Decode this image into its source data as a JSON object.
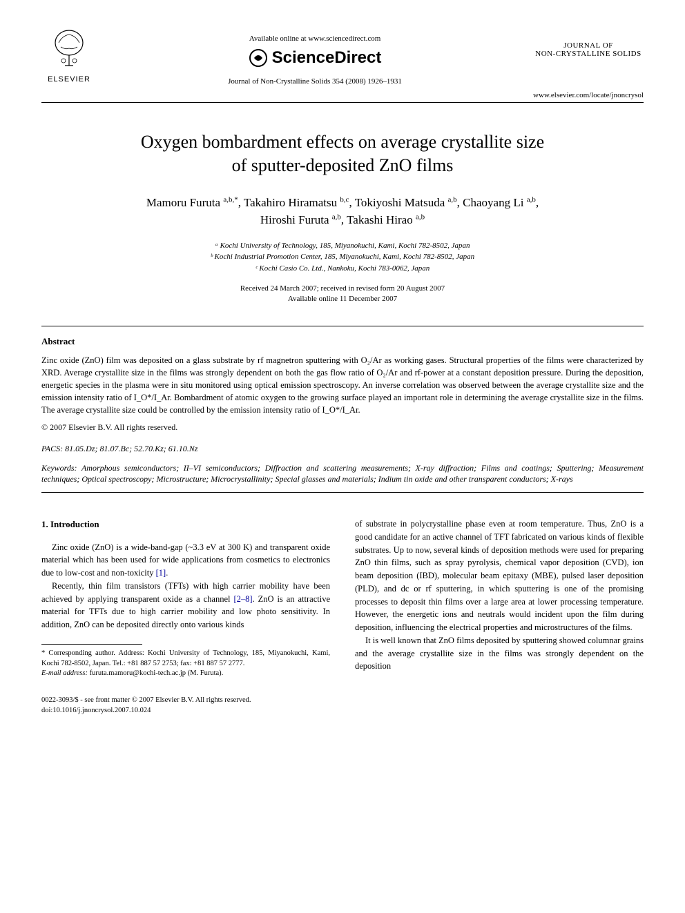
{
  "header": {
    "publisher_name": "ELSEVIER",
    "available_online": "Available online at www.sciencedirect.com",
    "sciencedirect_label": "ScienceDirect",
    "journal_citation": "Journal of Non-Crystalline Solids 354 (2008) 1926–1931",
    "journal_name_line1": "JOURNAL OF",
    "journal_name_line2": "NON-CRYSTALLINE SOLIDS",
    "journal_url": "www.elsevier.com/locate/jnoncrysol"
  },
  "article": {
    "title_line1": "Oxygen bombardment effects on average crystallite size",
    "title_line2": "of sputter-deposited ZnO films",
    "authors_line1_html": "Mamoru Furuta <sup>a,b,*</sup>, Takahiro Hiramatsu <sup>b,c</sup>, Tokiyoshi Matsuda <sup>a,b</sup>, Chaoyang Li <sup>a,b</sup>,",
    "authors_line2_html": "Hiroshi Furuta <sup>a,b</sup>, Takashi Hirao <sup>a,b</sup>",
    "affiliation_a": "ᵃ Kochi University of Technology, 185, Miyanokuchi, Kami, Kochi 782-8502, Japan",
    "affiliation_b": "ᵇ Kochi Industrial Promotion Center, 185, Miyanokuchi, Kami, Kochi 782-8502, Japan",
    "affiliation_c": "ᶜ Kochi Casio Co. Ltd., Nankoku, Kochi 783-0062, Japan",
    "received": "Received 24 March 2007; received in revised form 20 August 2007",
    "available": "Available online 11 December 2007"
  },
  "abstract": {
    "heading": "Abstract",
    "body": "Zinc oxide (ZnO) film was deposited on a glass substrate by rf magnetron sputtering with O₂/Ar as working gases. Structural properties of the films were characterized by XRD. Average crystallite size in the films was strongly dependent on both the gas flow ratio of O₂/Ar and rf-power at a constant deposition pressure. During the deposition, energetic species in the plasma were in situ monitored using optical emission spectroscopy. An inverse correlation was observed between the average crystallite size and the emission intensity ratio of I_O*/I_Ar. Bombardment of atomic oxygen to the growing surface played an important role in determining the average crystallite size in the films. The average crystallite size could be controlled by the emission intensity ratio of I_O*/I_Ar.",
    "copyright": "© 2007 Elsevier B.V. All rights reserved."
  },
  "pacs": {
    "label": "PACS:",
    "values": " 81.05.Dz; 81.07.Bc; 52.70.Kz; 61.10.Nz"
  },
  "keywords": {
    "label": "Keywords:",
    "values": " Amorphous semiconductors; II–VI semiconductors; Diffraction and scattering measurements; X-ray diffraction; Films and coatings; Sputtering; Measurement techniques; Optical spectroscopy; Microstructure; Microcrystallinity; Special glasses and materials; Indium tin oxide and other transparent conductors; X-rays"
  },
  "introduction": {
    "heading": "1. Introduction",
    "para1_pre": "Zinc oxide (ZnO) is a wide-band-gap (~3.3 eV at 300 K) and transparent oxide material which has been used for wide applications from cosmetics to electronics due to low-cost and non-toxicity ",
    "ref1": "[1]",
    "para1_post": ".",
    "para2_pre": "Recently, thin film transistors (TFTs) with high carrier mobility have been achieved by applying transparent oxide as a channel ",
    "ref2": "[2–8]",
    "para2_post": ". ZnO is an attractive material for TFTs due to high carrier mobility and low photo sensitivity. In addition, ZnO can be deposited directly onto various kinds",
    "col2_para1": "of substrate in polycrystalline phase even at room temperature. Thus, ZnO is a good candidate for an active channel of TFT fabricated on various kinds of flexible substrates. Up to now, several kinds of deposition methods were used for preparing ZnO thin films, such as spray pyrolysis, chemical vapor deposition (CVD), ion beam deposition (IBD), molecular beam epitaxy (MBE), pulsed laser deposition (PLD), and dc or rf sputtering, in which sputtering is one of the promising processes to deposit thin films over a large area at lower processing temperature. However, the energetic ions and neutrals would incident upon the film during deposition, influencing the electrical properties and microstructures of the films.",
    "col2_para2": "It is well known that ZnO films deposited by sputtering showed columnar grains and the average crystallite size in the films was strongly dependent on the deposition"
  },
  "footnote": {
    "corresponding": "* Corresponding author. Address: Kochi University of Technology, 185, Miyanokuchi, Kami, Kochi 782-8502, Japan. Tel.: +81 887 57 2753; fax: +81 887 57 2777.",
    "email_label": "E-mail address:",
    "email": " furuta.mamoru@kochi-tech.ac.jp ",
    "email_author": "(M. Furuta)."
  },
  "footer": {
    "issn": "0022-3093/$ - see front matter © 2007 Elsevier B.V. All rights reserved.",
    "doi": "doi:10.1016/j.jnoncrysol.2007.10.024"
  },
  "colors": {
    "text": "#000000",
    "background": "#ffffff",
    "link": "#000099"
  }
}
